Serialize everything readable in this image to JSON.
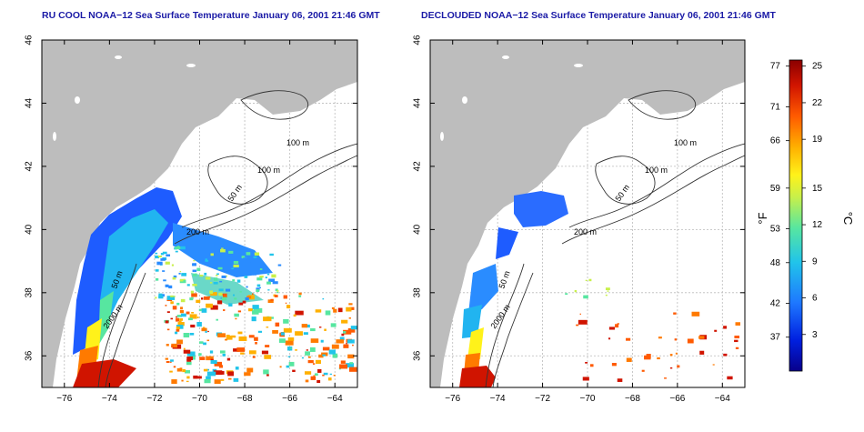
{
  "titles": {
    "left": "RU COOL NOAA−12 Sea Surface Temperature January 06, 2001 21:46 GMT",
    "right": "DECLOUDED NOAA−12 Sea Surface Temperature January 06, 2001 21:46 GMT"
  },
  "axes": {
    "lon_ticks": [
      "−76",
      "−74",
      "−72",
      "−70",
      "−68",
      "−66",
      "−64"
    ],
    "lat_ticks": [
      "36",
      "38",
      "40",
      "42",
      "44",
      "46"
    ],
    "lon_range": [
      -77,
      -63
    ],
    "lat_range": [
      35,
      46
    ]
  },
  "contours": {
    "labels": [
      "100 m",
      "100 m",
      "50 m",
      "200 m",
      "50 m",
      "2000 m"
    ]
  },
  "colorbar": {
    "unit_left": "°F",
    "unit_right": "°C",
    "fahrenheit_ticks": [
      "77",
      "71",
      "66",
      "59",
      "53",
      "48",
      "42",
      "37"
    ],
    "celsius_ticks": [
      "25",
      "22",
      "19",
      "15",
      "12",
      "9",
      "6",
      "3"
    ],
    "range_c": [
      0,
      25.5
    ]
  },
  "colors": {
    "land": "#bdbdbd",
    "title": "#1a1aa6",
    "scale": [
      "#08008a",
      "#0020e0",
      "#1e78ff",
      "#21c4ea",
      "#57e6a0",
      "#c8f04a",
      "#fff21a",
      "#ffb000",
      "#ff5a00",
      "#d01400",
      "#8a0000"
    ]
  }
}
